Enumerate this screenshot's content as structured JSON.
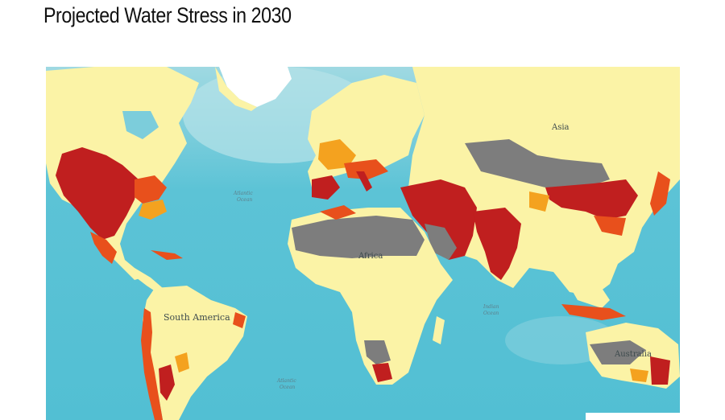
{
  "title": "Projected Water Stress in 2030",
  "map": {
    "continent_labels": [
      "Asia",
      "South America",
      "Africa",
      "Australia"
    ],
    "ocean_labels": [
      [
        "Atlantic",
        "Ocean"
      ],
      [
        "Indian",
        "Ocean"
      ],
      [
        "Atlantic",
        "Ocean"
      ]
    ],
    "colors": {
      "ocean_deep": "#56c2d6",
      "ocean_light": "#a9dde3",
      "land_low": "#fbf3a6",
      "land_arid": "#7d7d7d",
      "stress_medium_high": "#f4a21f",
      "stress_high": "#e8501c",
      "stress_extreme": "#c01f1f",
      "ice": "#ffffff"
    }
  }
}
